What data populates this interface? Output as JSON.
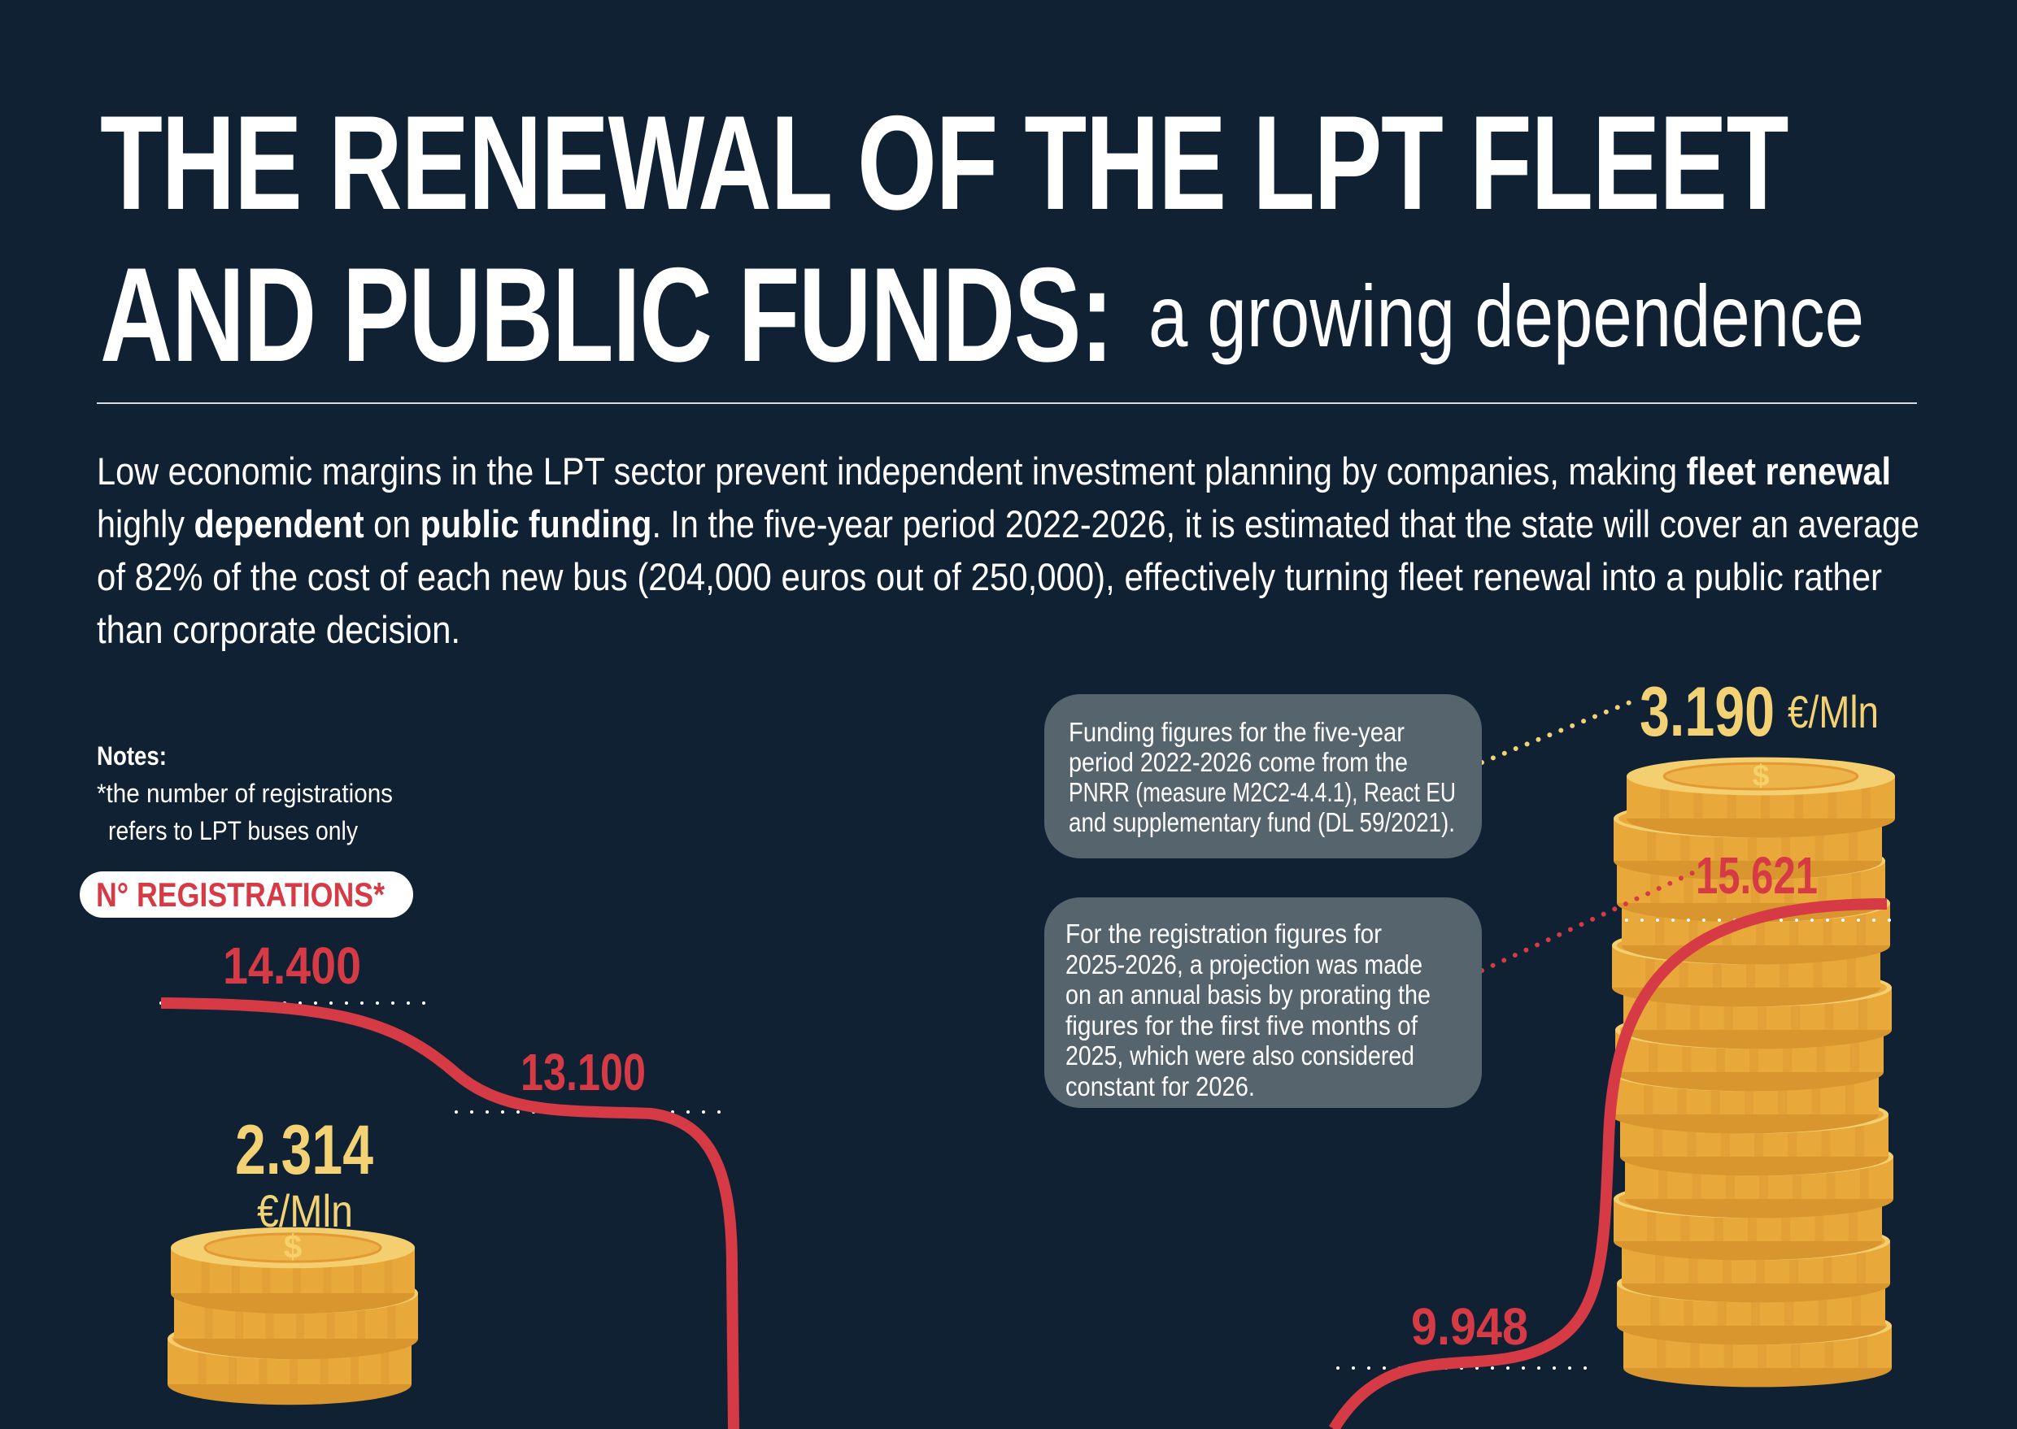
{
  "title": {
    "line1": "THE RENEWAL OF THE LPT FLEET",
    "line2": "AND PUBLIC FUNDS:",
    "subtitle": "a growing dependence"
  },
  "intro": {
    "l1a": "Low economic margins in the LPT sector prevent independent investment planning by companies, making ",
    "l1b": "fleet renewal",
    "l2a": "highly ",
    "l2b": "dependent",
    "l2c": " on ",
    "l2d": "public funding",
    "l2e": ". In the five-year period 2022-2026, it is estimated that the state will cover an average",
    "l3": "of 82% of the cost of each new bus (204,000 euros out of 250,000), effectively turning fleet renewal into a public rather",
    "l4": "than corporate decision."
  },
  "notes": {
    "heading": "Notes:",
    "line1": "*the number of registrations",
    "line2": "refers to LPT buses only"
  },
  "registrations_label": "N° REGISTRATIONS*",
  "boxes": {
    "funding": [
      "Funding figures for the five-year",
      "period 2022-2026 come from the",
      "PNRR (measure M2C2-4.4.1), React EU",
      "and supplementary fund (DL 59/2021)."
    ],
    "projection": [
      "For the registration figures for",
      "2025-2026, a projection was made",
      "on an annual basis by prorating the",
      "figures for the first five months of",
      "2025, which were also considered",
      "constant for 2026."
    ]
  },
  "chart_data": {
    "type": "line",
    "registrations": {
      "labels": [
        "14.400",
        "13.100",
        "9.948",
        "15.621"
      ],
      "values": [
        14400,
        13100,
        9948,
        15621
      ]
    },
    "funding": {
      "labels": [
        "2.314",
        "3.190"
      ],
      "values": [
        2314,
        3190
      ],
      "unit": "€/Mln"
    },
    "colors": {
      "background": "#0f2133",
      "registrations": "#d63a45",
      "funding": "#f2d274",
      "coin": "#e9a93a",
      "note_box": "#56646e"
    }
  }
}
